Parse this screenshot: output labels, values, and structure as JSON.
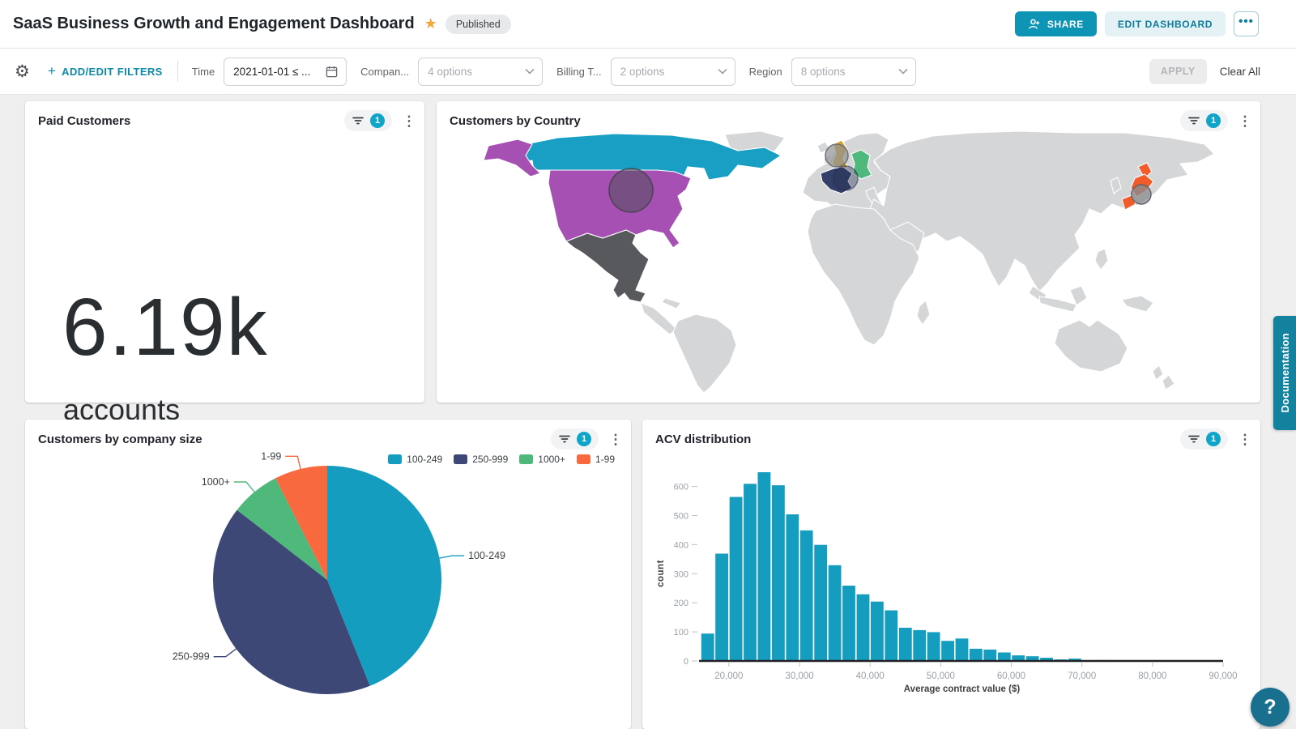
{
  "header": {
    "title": "SaaS Business Growth and Engagement Dashboard",
    "status": "Published",
    "share": "SHARE",
    "edit": "EDIT DASHBOARD"
  },
  "icons": {
    "gear": "⚙",
    "plus": "+",
    "star": "★",
    "kebab": "⋮",
    "more": "•••",
    "help": "?"
  },
  "filter_bar": {
    "add_edit": "ADD/EDIT FILTERS",
    "items": [
      {
        "label": "Time",
        "value": "2021-01-01 ≤ ...",
        "type": "date"
      },
      {
        "label": "Compan...",
        "value": "4 options",
        "type": "select"
      },
      {
        "label": "Billing T...",
        "value": "2 options",
        "type": "select"
      },
      {
        "label": "Region",
        "value": "8 options",
        "type": "select"
      }
    ],
    "apply": "APPLY",
    "clear_all": "Clear All"
  },
  "tiles": {
    "paid_customers": {
      "title": "Paid Customers",
      "filter_count": "1",
      "value": "6.19k",
      "unit": "accounts"
    },
    "customers_by_country": {
      "title": "Customers by Country",
      "filter_count": "1"
    },
    "company_size": {
      "title": "Customers by company size",
      "filter_count": "1"
    },
    "acv": {
      "title": "ACV distribution",
      "filter_count": "1"
    }
  },
  "side": {
    "documentation": "Documentation"
  },
  "chart_data": [
    {
      "type": "pie",
      "title": "Customers by company size",
      "labels": [
        "100-249",
        "250-999",
        "1000+",
        "1-99"
      ],
      "values": [
        43.9,
        41.6,
        7.0,
        7.5
      ],
      "unit": "percent (estimated from slice angles)",
      "colors": [
        "#149DBF",
        "#3D4877",
        "#4FB97C",
        "#F9693F"
      ],
      "start_angle_deg": 0,
      "direction": "clockwise",
      "legend_position": "top-right",
      "callout_labels": true
    },
    {
      "type": "bar",
      "subtype": "histogram",
      "title": "ACV distribution",
      "xlabel": "Average contract value ($)",
      "ylabel": "count",
      "bar_color": "#149DBF",
      "bin_start": 16000,
      "bin_width": 2000,
      "values": [
        95,
        370,
        565,
        610,
        650,
        605,
        505,
        450,
        400,
        330,
        260,
        230,
        205,
        175,
        115,
        107,
        100,
        70,
        78,
        43,
        40,
        30,
        20,
        17,
        12,
        6,
        9,
        1,
        4
      ],
      "xlim": [
        16000,
        90000
      ],
      "ylim": [
        0,
        650
      ],
      "yticks": [
        0,
        100,
        200,
        300,
        400,
        500,
        600
      ],
      "xticks": [
        20000,
        30000,
        40000,
        50000,
        60000,
        70000,
        80000,
        90000
      ],
      "grid": false
    },
    {
      "type": "heatmap",
      "subtype": "choropleth-world-map",
      "title": "Customers by Country",
      "base_land_color": "#D5D6D7",
      "highlighted": [
        {
          "country": "Canada",
          "color": "#1A9FC4"
        },
        {
          "country": "United States",
          "color": "#A650B4"
        },
        {
          "country": "Mexico",
          "color": "#57595D"
        },
        {
          "country": "United Kingdom",
          "color": "#D7A32A"
        },
        {
          "country": "France",
          "color": "#333E69"
        },
        {
          "country": "Germany",
          "color": "#4FB97C"
        },
        {
          "country": "Japan",
          "color": "#F25C2A"
        }
      ],
      "bubble_markers": [
        "United States",
        "United Kingdom",
        "France",
        "Japan"
      ]
    }
  ]
}
